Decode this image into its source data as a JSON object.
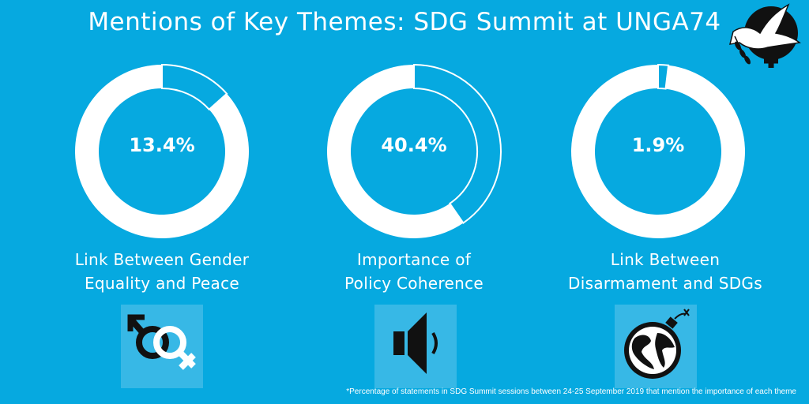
{
  "header": {
    "title": "Mentions of Key Themes: SDG Summit at UNGA74"
  },
  "chart_data": {
    "type": "pie",
    "title": "Mentions of Key Themes: SDG Summit at UNGA74",
    "unit": "%",
    "series": [
      {
        "name": "Link Between Gender Equality and Peace",
        "value": 13.4,
        "label": "13.4%",
        "label_lines": [
          "Link Between Gender",
          "Equality and Peace"
        ]
      },
      {
        "name": "Importance of Policy Coherence",
        "value": 40.4,
        "label": "40.4%",
        "label_lines": [
          "Importance of",
          "Policy Coherence"
        ]
      },
      {
        "name": "Link Between Disarmament and SDGs",
        "value": 1.9,
        "label": "1.9%",
        "label_lines": [
          "Link Between",
          "Disarmament and SDGs"
        ]
      }
    ]
  },
  "icons": [
    "gender-symbols-icon",
    "speaker-icon",
    "globe-bomb-icon",
    "peace-dove-logo-icon"
  ],
  "colors": {
    "background": "#06a9e0",
    "ring": "#ffffff",
    "icon_box": "#37b8e6",
    "icon_dark": "#111111"
  },
  "footnote": "*Percentage of statements in SDG Summit sessions between 24-25 September 2019 that mention the importance of each theme"
}
